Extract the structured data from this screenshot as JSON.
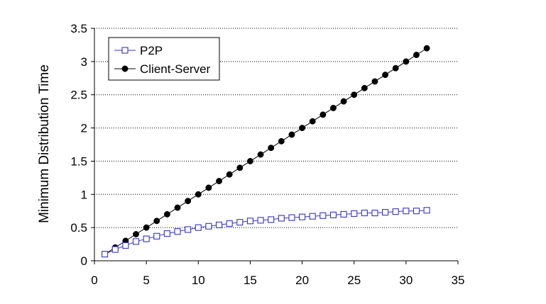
{
  "chart_data": {
    "type": "line",
    "xlabel": "",
    "ylabel": "Minimum Distribution Time",
    "xlim": [
      0,
      35
    ],
    "ylim": [
      0,
      3.5
    ],
    "x_ticks": [
      0,
      5,
      10,
      15,
      20,
      25,
      30,
      35
    ],
    "y_ticks": [
      0,
      0.5,
      1,
      1.5,
      2,
      2.5,
      3,
      3.5
    ],
    "x_tick_labels": [
      "0",
      "5",
      "10",
      "15",
      "20",
      "25",
      "30",
      "35"
    ],
    "y_tick_labels": [
      "0",
      "0.5",
      "1",
      "1.5",
      "2",
      "2.5",
      "3",
      "3.5"
    ],
    "grid": "horizontal dotted",
    "legend_position": "top-left",
    "x": [
      1,
      2,
      3,
      4,
      5,
      6,
      7,
      8,
      9,
      10,
      11,
      12,
      13,
      14,
      15,
      16,
      17,
      18,
      19,
      20,
      21,
      22,
      23,
      24,
      25,
      26,
      27,
      28,
      29,
      30,
      31,
      32
    ],
    "series": [
      {
        "name": "P2P",
        "marker": "open-square",
        "color": "#3333cc",
        "values": [
          0.1,
          0.17,
          0.23,
          0.29,
          0.33,
          0.37,
          0.41,
          0.44,
          0.47,
          0.5,
          0.52,
          0.54,
          0.56,
          0.58,
          0.6,
          0.61,
          0.62,
          0.64,
          0.65,
          0.66,
          0.67,
          0.68,
          0.69,
          0.7,
          0.71,
          0.72,
          0.72,
          0.73,
          0.74,
          0.75,
          0.75,
          0.76
        ]
      },
      {
        "name": "Client-Server",
        "marker": "filled-circle",
        "color": "#000000",
        "values": [
          0.1,
          0.2,
          0.3,
          0.4,
          0.5,
          0.6,
          0.7,
          0.8,
          0.9,
          1.0,
          1.1,
          1.2,
          1.3,
          1.4,
          1.5,
          1.6,
          1.7,
          1.8,
          1.9,
          2.0,
          2.1,
          2.2,
          2.3,
          2.4,
          2.5,
          2.6,
          2.7,
          2.8,
          2.9,
          3.0,
          3.1,
          3.2
        ]
      }
    ]
  }
}
